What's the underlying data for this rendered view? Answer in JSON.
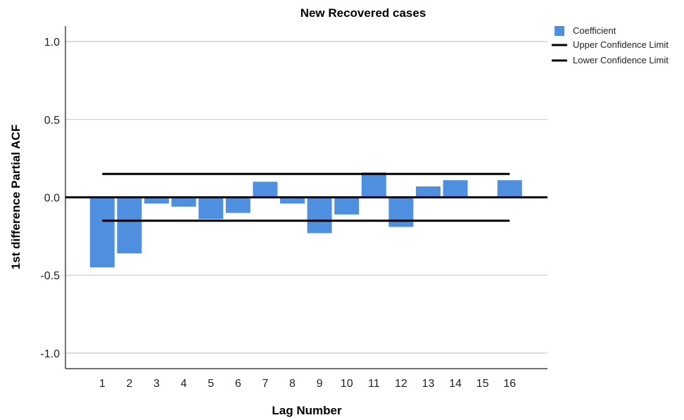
{
  "chart_data": {
    "type": "bar",
    "title": "New Recovered cases",
    "xlabel": "Lag Number",
    "ylabel": "1st difference Partial ACF",
    "categories": [
      "1",
      "2",
      "3",
      "4",
      "5",
      "6",
      "7",
      "8",
      "9",
      "10",
      "11",
      "12",
      "13",
      "14",
      "15",
      "16"
    ],
    "series": [
      {
        "name": "Coefficient",
        "values": [
          -0.45,
          -0.36,
          -0.04,
          -0.06,
          -0.14,
          -0.1,
          0.1,
          -0.04,
          -0.23,
          -0.11,
          0.16,
          -0.19,
          0.07,
          0.11,
          0.0,
          0.11
        ]
      }
    ],
    "confidence_limits": {
      "upper": {
        "name": "Upper Confidence Limit",
        "value": 0.15
      },
      "lower": {
        "name": "Lower Confidence Limit",
        "value": -0.15
      }
    },
    "ylim": [
      -1.1,
      1.1
    ],
    "yticks": [
      "1.0",
      "0.5",
      "0.0",
      "-0.5",
      "-1.0"
    ],
    "ytick_values": [
      1.0,
      0.5,
      0.0,
      -0.5,
      -1.0
    ],
    "grid": true,
    "legend_position": "top-right",
    "colors": {
      "bar": "#4f8fe0",
      "limit_line": "#000000",
      "grid": "#c8c8c8",
      "axis": "#444444"
    }
  }
}
